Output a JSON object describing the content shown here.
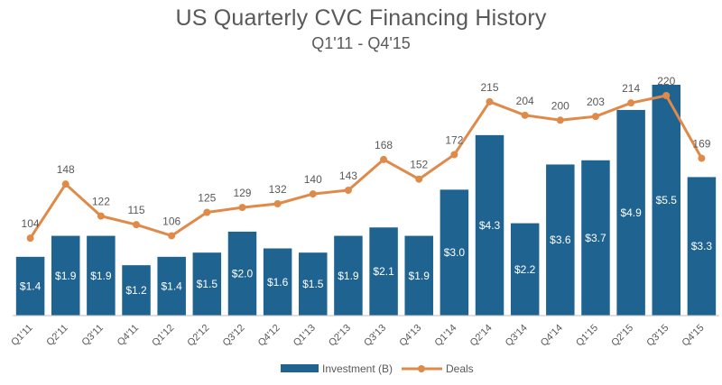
{
  "chart_data": {
    "type": "bar",
    "title": "US Quarterly CVC Financing History",
    "subtitle": "Q1'11 - Q4'15",
    "categories": [
      "Q1'11",
      "Q2'11",
      "Q3'11",
      "Q4'11",
      "Q1'12",
      "Q2'12",
      "Q3'12",
      "Q4'12",
      "Q1'13",
      "Q2'13",
      "Q3'13",
      "Q4'13",
      "Q1'14",
      "Q2'14",
      "Q3'14",
      "Q4'14",
      "Q1'15",
      "Q2'15",
      "Q3'15",
      "Q4'15"
    ],
    "series": [
      {
        "name": "Investment (B)",
        "type": "bar",
        "color": "#1f6391",
        "values": [
          1.4,
          1.9,
          1.9,
          1.2,
          1.4,
          1.5,
          2.0,
          1.6,
          1.5,
          1.9,
          2.1,
          1.9,
          3.0,
          4.3,
          2.2,
          3.6,
          3.7,
          4.9,
          5.5,
          3.3
        ],
        "labels": [
          "$1.4",
          "$1.9",
          "$1.9",
          "$1.2",
          "$1.4",
          "$1.5",
          "$2.0",
          "$1.6",
          "$1.5",
          "$1.9",
          "$2.1",
          "$1.9",
          "$3.0",
          "$4.3",
          "$2.2",
          "$3.6",
          "$3.7",
          "$4.9",
          "$5.5",
          "$3.3"
        ]
      },
      {
        "name": "Deals",
        "type": "line",
        "color": "#e08a4a",
        "values": [
          104,
          148,
          122,
          115,
          106,
          125,
          129,
          132,
          140,
          143,
          168,
          152,
          172,
          215,
          204,
          200,
          203,
          214,
          220,
          169
        ]
      }
    ],
    "bar_ylim": [
      0,
      5.5
    ],
    "line_ylim": [
      0,
      220
    ],
    "grid": false,
    "legend_position": "bottom"
  }
}
